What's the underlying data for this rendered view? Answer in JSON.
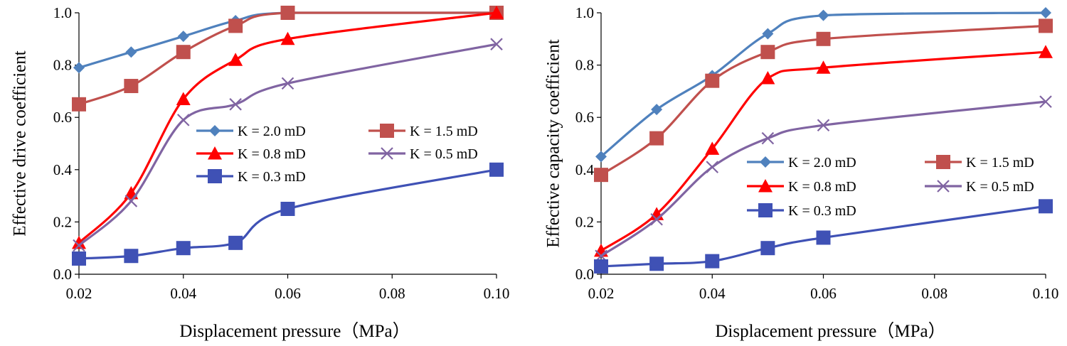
{
  "colors": {
    "K = 2.0 mD": "#4F81BD",
    "K = 1.5 mD": "#C0504D",
    "K = 0.8 mD": "#FF0000",
    "K = 0.5 mD": "#8064A2",
    "K = 0.3 mD": "#3F51B5"
  },
  "chart_data": [
    {
      "type": "line",
      "xlabel": "Displacement pressure（MPa）",
      "ylabel": "Effective drive coefficient",
      "xlim": [
        0.02,
        0.1
      ],
      "ylim": [
        0.0,
        1.0
      ],
      "xticks": [
        "0.02",
        "0.04",
        "0.06",
        "0.08",
        "0.10"
      ],
      "yticks": [
        "0.0",
        "0.2",
        "0.4",
        "0.6",
        "0.8",
        "1.0"
      ],
      "x": [
        0.02,
        0.03,
        0.04,
        0.05,
        0.06,
        0.1
      ],
      "series": [
        {
          "name": "K = 2.0 mD",
          "marker": "diamond",
          "values": [
            0.79,
            0.85,
            0.91,
            0.97,
            1.0,
            1.0
          ]
        },
        {
          "name": "K = 1.5 mD",
          "marker": "square",
          "values": [
            0.65,
            0.72,
            0.85,
            0.95,
            1.0,
            1.0
          ]
        },
        {
          "name": "K = 0.8 mD",
          "marker": "triangle",
          "values": [
            0.12,
            0.31,
            0.67,
            0.82,
            0.9,
            1.0
          ]
        },
        {
          "name": "K = 0.5 mD",
          "marker": "x",
          "values": [
            0.11,
            0.28,
            0.59,
            0.65,
            0.73,
            0.88
          ]
        },
        {
          "name": "K = 0.3 mD",
          "marker": "square",
          "values": [
            0.06,
            0.07,
            0.1,
            0.12,
            0.25,
            0.4
          ]
        }
      ]
    },
    {
      "type": "line",
      "xlabel": "Displacement pressure（MPa）",
      "ylabel": "Effective capacity coefficient",
      "xlim": [
        0.02,
        0.1
      ],
      "ylim": [
        0.0,
        1.0
      ],
      "xticks": [
        "0.02",
        "0.04",
        "0.06",
        "0.08",
        "0.10"
      ],
      "yticks": [
        "0.0",
        "0.2",
        "0.4",
        "0.6",
        "0.8",
        "1.0"
      ],
      "x": [
        0.02,
        0.03,
        0.04,
        0.05,
        0.06,
        0.1
      ],
      "series": [
        {
          "name": "K = 2.0 mD",
          "marker": "diamond",
          "values": [
            0.45,
            0.63,
            0.76,
            0.92,
            0.99,
            1.0
          ]
        },
        {
          "name": "K = 1.5 mD",
          "marker": "square",
          "values": [
            0.38,
            0.52,
            0.74,
            0.85,
            0.9,
            0.95
          ]
        },
        {
          "name": "K = 0.8 mD",
          "marker": "triangle",
          "values": [
            0.09,
            0.23,
            0.48,
            0.75,
            0.79,
            0.85
          ]
        },
        {
          "name": "K = 0.5 mD",
          "marker": "x",
          "values": [
            0.07,
            0.21,
            0.41,
            0.52,
            0.57,
            0.66
          ]
        },
        {
          "name": "K = 0.3 mD",
          "marker": "square",
          "values": [
            0.03,
            0.04,
            0.05,
            0.1,
            0.14,
            0.26
          ]
        }
      ]
    }
  ]
}
